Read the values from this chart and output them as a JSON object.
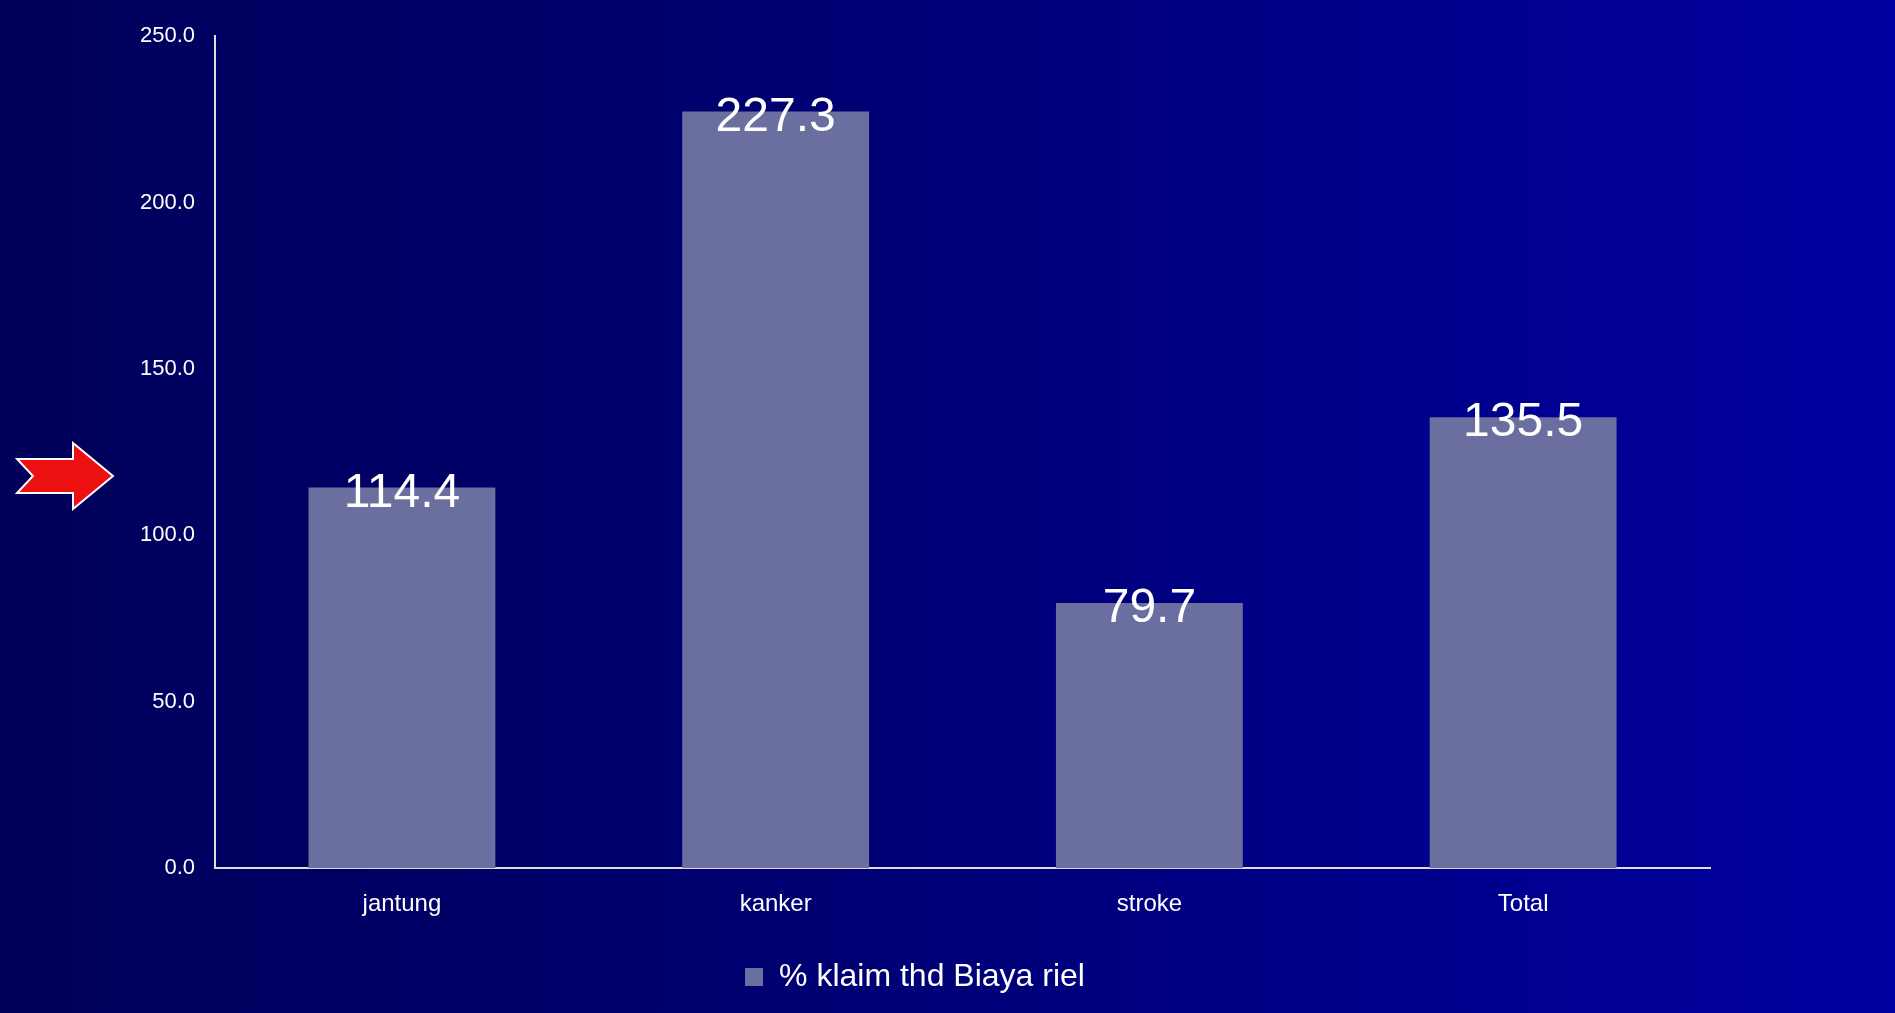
{
  "chart_data": {
    "type": "bar",
    "categories": [
      "jantung",
      "kanker",
      "stroke",
      "Total"
    ],
    "series": [
      {
        "name": "% klaim thd Biaya riel",
        "color": "#6b6f9f",
        "values": [
          114.4,
          227.3,
          79.7,
          135.5
        ]
      }
    ],
    "ylim": [
      0,
      250
    ],
    "yticks": [
      {
        "value": 0,
        "label": "0.0"
      },
      {
        "value": 50,
        "label": "50.0"
      },
      {
        "value": 100,
        "label": "100.0"
      },
      {
        "value": 150,
        "label": "150.0"
      },
      {
        "value": 200,
        "label": "200.0"
      },
      {
        "value": 250,
        "label": "250.0"
      }
    ],
    "grid": false,
    "legend": "bottom",
    "data_labels": true
  }
}
